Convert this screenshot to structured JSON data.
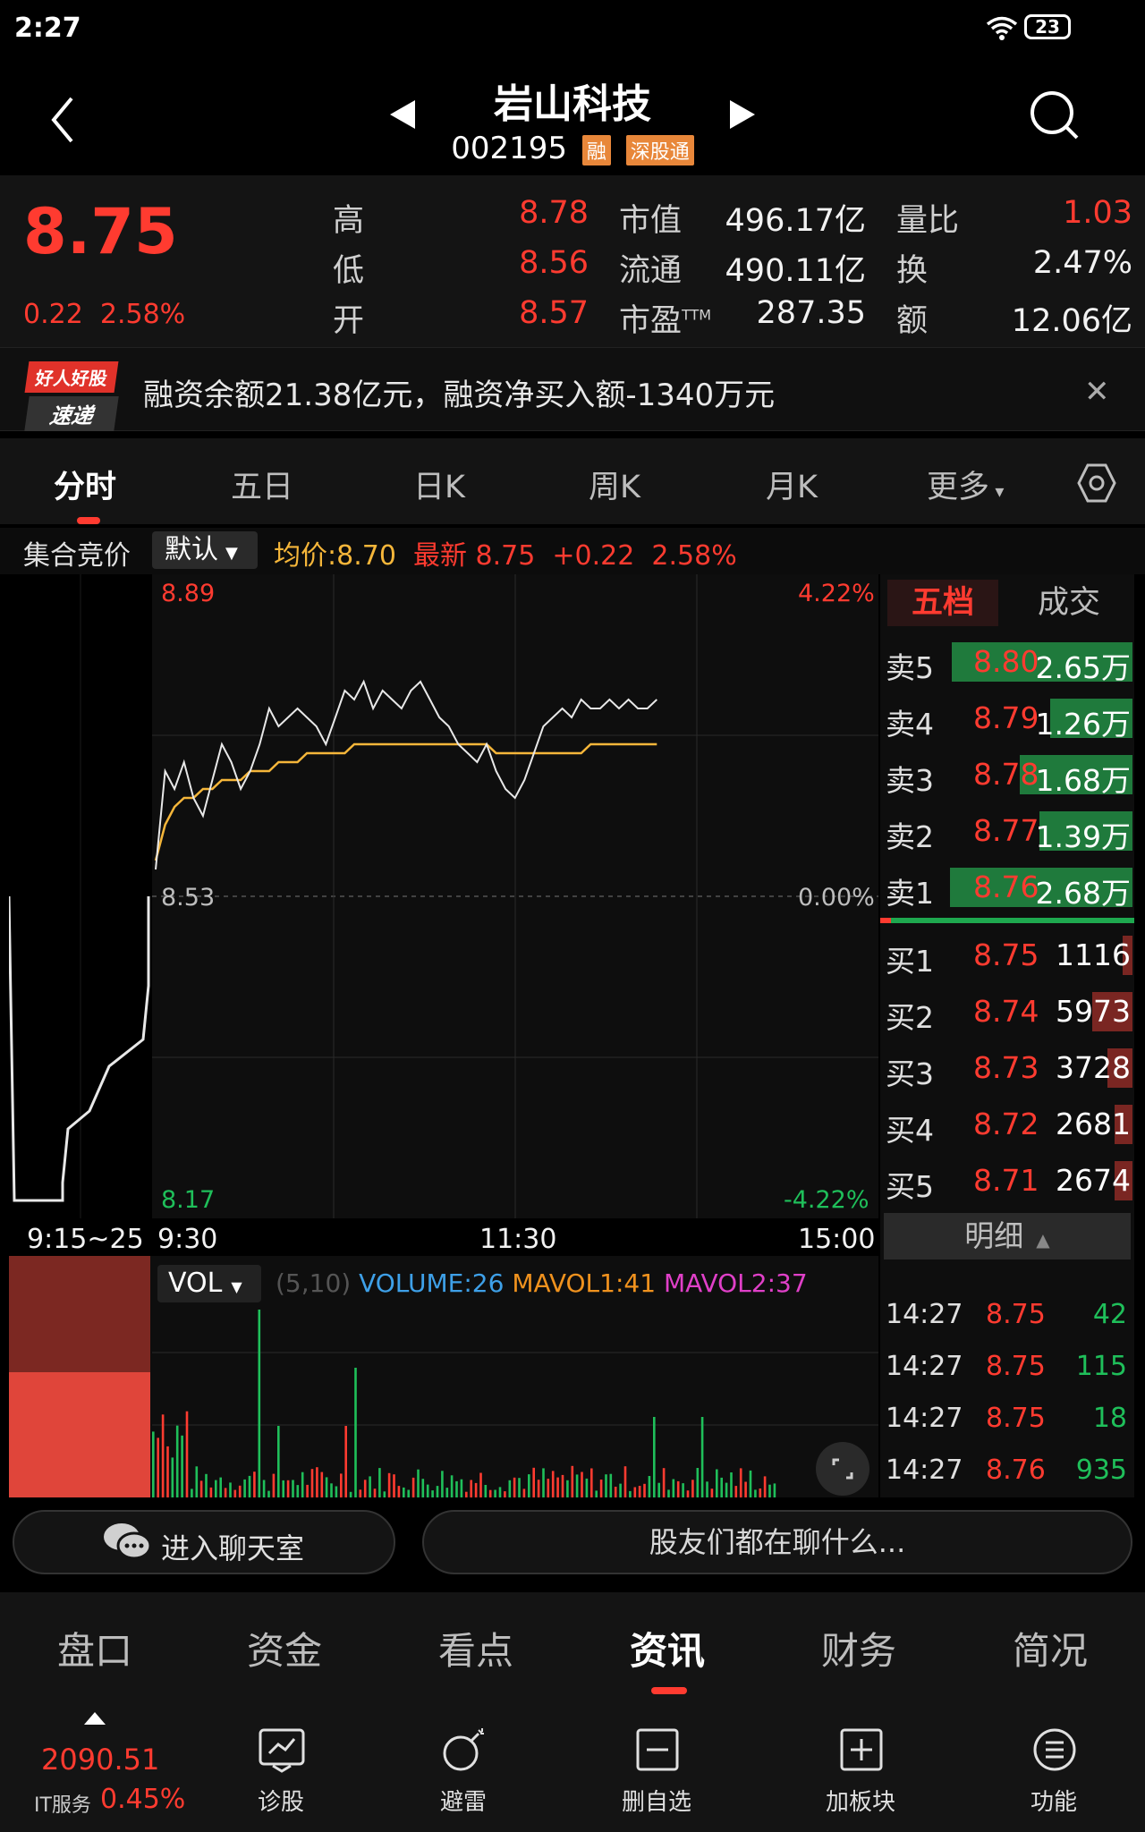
{
  "status_bar": {
    "time": "2:27",
    "battery": "23"
  },
  "header": {
    "stock_name": "岩山科技",
    "stock_code": "002195",
    "tag_margin": "融",
    "tag_connect": "深股通"
  },
  "quote": {
    "last_price": "8.75",
    "change": "0.22",
    "change_pct": "2.58%",
    "high_label": "高",
    "high": "8.78",
    "low_label": "低",
    "low": "8.56",
    "open_label": "开",
    "open": "8.57",
    "mktcap_label": "市值",
    "mktcap": "496.17亿",
    "float_label": "流通",
    "float": "490.11亿",
    "pe_label": "市盈",
    "pe_sup": "TTM",
    "pe": "287.35",
    "vol_ratio_label": "量比",
    "vol_ratio": "1.03",
    "turnover_label": "换",
    "turnover": "2.47%",
    "amount_label": "额",
    "amount": "12.06亿"
  },
  "banner": {
    "logo_top": "好人好股",
    "logo_bottom": "速递",
    "text": "融资余额21.38亿元，融资净买入额-1340万元"
  },
  "chart_tabs": [
    "分时",
    "五日",
    "日K",
    "周K",
    "月K",
    "更多"
  ],
  "subbar": {
    "auction": "集合竞价",
    "default": "默认",
    "avg": "均价:8.70",
    "latest": "最新 8.75",
    "chg": "+0.22",
    "pct": "2.58%"
  },
  "chart_labels": {
    "top_price": "8.89",
    "top_pct": "4.22%",
    "mid_price": "8.53",
    "mid_pct": "0.00%",
    "bottom_price": "8.17",
    "bottom_pct": "-4.22%",
    "t0": "9:15~25",
    "t1": "9:30",
    "t2": "11:30",
    "t3": "15:00"
  },
  "volume_labels": {
    "indicator": "VOL",
    "params": "(5,10)",
    "volume": "VOLUME:26",
    "mavol1": "MAVOL1:41",
    "mavol2": "MAVOL2:37"
  },
  "chart_data": {
    "type": "line",
    "prev_close": 8.53,
    "ylim": [
      8.17,
      8.89
    ],
    "series": [
      {
        "name": "最新",
        "values": [
          8.56,
          8.67,
          8.65,
          8.68,
          8.64,
          8.62,
          8.66,
          8.7,
          8.68,
          8.65,
          8.67,
          8.7,
          8.74,
          8.72,
          8.73,
          8.74,
          8.73,
          8.72,
          8.7,
          8.73,
          8.76,
          8.75,
          8.77,
          8.74,
          8.76,
          8.75,
          8.74,
          8.76,
          8.77,
          8.75,
          8.73,
          8.72,
          8.7,
          8.69,
          8.68,
          8.7,
          8.67,
          8.65,
          8.64,
          8.66,
          8.69,
          8.72,
          8.73,
          8.74,
          8.73,
          8.75,
          8.74,
          8.74,
          8.75,
          8.74,
          8.75,
          8.74,
          8.74,
          8.75
        ]
      },
      {
        "name": "均价",
        "values": [
          8.57,
          8.61,
          8.63,
          8.64,
          8.64,
          8.65,
          8.65,
          8.66,
          8.66,
          8.66,
          8.67,
          8.67,
          8.67,
          8.68,
          8.68,
          8.68,
          8.69,
          8.69,
          8.69,
          8.69,
          8.69,
          8.7,
          8.7,
          8.7,
          8.7,
          8.7,
          8.7,
          8.7,
          8.7,
          8.7,
          8.7,
          8.7,
          8.7,
          8.7,
          8.7,
          8.7,
          8.69,
          8.69,
          8.69,
          8.69,
          8.69,
          8.69,
          8.69,
          8.69,
          8.69,
          8.69,
          8.7,
          8.7,
          8.7,
          8.7,
          8.7,
          8.7,
          8.7,
          8.7
        ]
      }
    ]
  },
  "order_book": {
    "tab_five": "五档",
    "tab_deal": "成交",
    "asks": [
      {
        "label": "卖5",
        "price": "8.80",
        "vol": "2.65万",
        "fill": 0.72
      },
      {
        "label": "卖4",
        "price": "8.79",
        "vol": "1.26万",
        "fill": 0.33
      },
      {
        "label": "卖3",
        "price": "8.78",
        "vol": "1.68万",
        "fill": 0.45
      },
      {
        "label": "卖2",
        "price": "8.77",
        "vol": "1.39万",
        "fill": 0.37
      },
      {
        "label": "卖1",
        "price": "8.76",
        "vol": "2.68万",
        "fill": 0.73
      }
    ],
    "bids": [
      {
        "label": "买1",
        "price": "8.75",
        "vol": "1116",
        "fill": 0.04
      },
      {
        "label": "买2",
        "price": "8.74",
        "vol": "5973",
        "fill": 0.16
      },
      {
        "label": "买3",
        "price": "8.73",
        "vol": "3728",
        "fill": 0.1
      },
      {
        "label": "买4",
        "price": "8.72",
        "vol": "2681",
        "fill": 0.07
      },
      {
        "label": "买5",
        "price": "8.71",
        "vol": "2674",
        "fill": 0.07
      }
    ],
    "detail_label": "明细",
    "ticks": [
      {
        "time": "14:27",
        "price": "8.75",
        "vol": "42"
      },
      {
        "time": "14:27",
        "price": "8.75",
        "vol": "115"
      },
      {
        "time": "14:27",
        "price": "8.75",
        "vol": "18"
      },
      {
        "time": "14:27",
        "price": "8.76",
        "vol": "935"
      }
    ]
  },
  "chat": {
    "enter": "进入聊天室",
    "topic": "股友们都在聊什么..."
  },
  "info_tabs": [
    "盘口",
    "资金",
    "看点",
    "资讯",
    "财务",
    "简况"
  ],
  "index": {
    "value": "2090.51",
    "name": "IT服务",
    "pct": "0.45%"
  },
  "tools": [
    "诊股",
    "避雷",
    "删自选",
    "加板块",
    "功能"
  ],
  "colors": {
    "up": "#ff3b30",
    "down": "#1fbf5a",
    "avg_line": "#f5b63a",
    "accent_tag": "#e8873a"
  }
}
